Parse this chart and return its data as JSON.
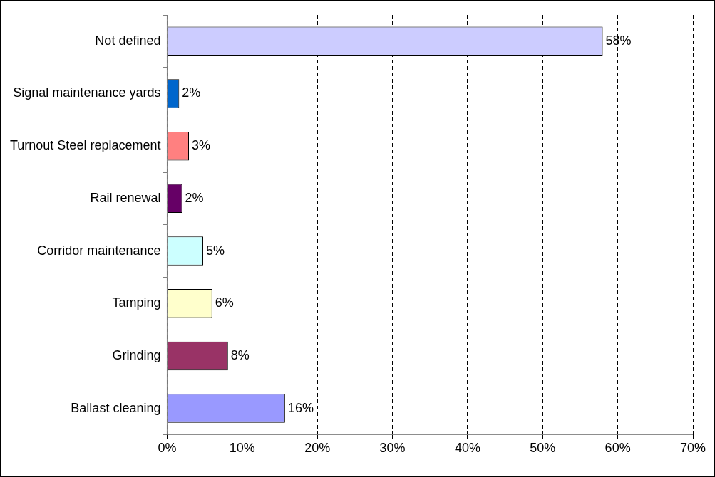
{
  "chart_data": {
    "type": "bar",
    "orientation": "horizontal",
    "categories": [
      "Not defined",
      "Signal maintenance yards",
      "Turnout Steel replacement",
      "Rail renewal",
      "Corridor maintenance",
      "Tamping",
      "Grinding",
      "Ballast cleaning"
    ],
    "values": [
      58,
      1.6,
      2.9,
      2,
      4.8,
      6,
      8.1,
      15.7
    ],
    "value_labels": [
      "58%",
      "2%",
      "3%",
      "2%",
      "5%",
      "6%",
      "8%",
      "16%"
    ],
    "colors": [
      "#ccccff",
      "#0066cc",
      "#ff8080",
      "#660066",
      "#ccffff",
      "#ffffcc",
      "#993366",
      "#9999ff"
    ],
    "xlim": [
      0,
      70
    ],
    "xticks": [
      {
        "value": 0,
        "label": "0%"
      },
      {
        "value": 10,
        "label": "10%"
      },
      {
        "value": 20,
        "label": "20%"
      },
      {
        "value": 30,
        "label": "30%"
      },
      {
        "value": 40,
        "label": "40%"
      },
      {
        "value": 50,
        "label": "50%"
      },
      {
        "value": 60,
        "label": "60%"
      },
      {
        "value": 70,
        "label": "70%"
      }
    ],
    "grid": "x",
    "line_style": "dashed",
    "legend": false
  }
}
